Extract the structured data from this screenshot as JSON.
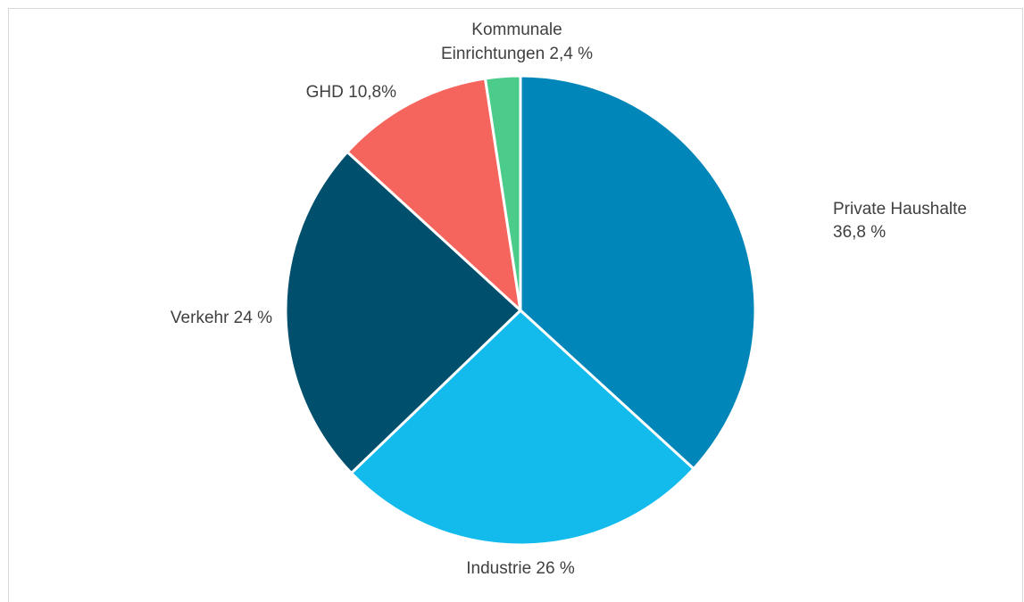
{
  "chart_data": {
    "type": "pie",
    "title": "",
    "start_angle_deg": 0,
    "direction": "clockwise",
    "slices": [
      {
        "label": "Private Haushalte",
        "value": 36.8,
        "label_text_lines": [
          "Private Haushalte",
          "36,8 %"
        ],
        "color": "#0086b8",
        "label_anchor": "start"
      },
      {
        "label": "Industrie",
        "value": 26,
        "label_text_lines": [
          "Industrie 26 %"
        ],
        "color": "#13bbec",
        "label_anchor": "middle"
      },
      {
        "label": "Verkehr",
        "value": 24,
        "label_text_lines": [
          "Verkehr 24 %"
        ],
        "color": "#004f6c",
        "label_anchor": "end"
      },
      {
        "label": "GHD",
        "value": 10.8,
        "label_text_lines": [
          "GHD 10,8%"
        ],
        "color": "#f6655d",
        "label_anchor": "end"
      },
      {
        "label": "Kommunale Einrichtungen",
        "value": 2.4,
        "label_text_lines": [
          "Kommunale",
          "Einrichtungen 2,4 %"
        ],
        "color": "#4ccc8b",
        "label_anchor": "middle"
      }
    ],
    "legend": "none",
    "labels_outside": true
  }
}
